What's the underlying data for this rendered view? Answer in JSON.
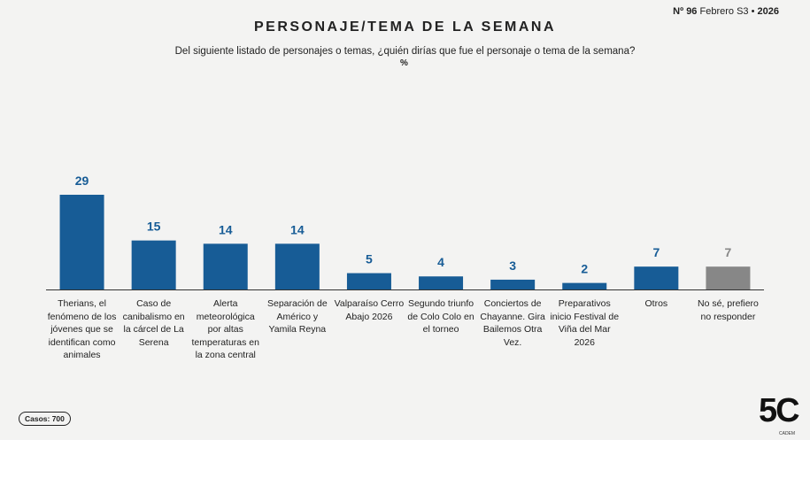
{
  "header": {
    "issue_label": "Nº",
    "issue_number": "96",
    "period": "Febrero S3",
    "separator": "•",
    "year": "2026"
  },
  "chart_data": {
    "type": "bar",
    "title": "PERSONAJE/TEMA DE LA SEMANA",
    "subtitle": "Del siguiente listado de personajes o temas, ¿quién dirías que fue el personaje o tema de la semana?",
    "unit": "%",
    "categories": [
      "Therians, el fenómeno de los jóvenes que se identifican como animales",
      "Caso de canibalismo en la cárcel de La Serena",
      "Alerta meteorológica por altas temperaturas en la zona central",
      "Separación de Américo y Yamila Reyna",
      "Valparaíso Cerro Abajo 2026",
      "Segundo triunfo de Colo Colo en el torneo",
      "Conciertos de Chayanne. Gira Bailemos Otra Vez.",
      "Preparativos inicio Festival de Viña del Mar 2026",
      "Otros",
      "No sé, prefiero no responder"
    ],
    "values": [
      29,
      15,
      14,
      14,
      5,
      4,
      3,
      2,
      7,
      7
    ],
    "colors": [
      "#175c96",
      "#175c96",
      "#175c96",
      "#175c96",
      "#175c96",
      "#175c96",
      "#175c96",
      "#175c96",
      "#175c96",
      "#878787"
    ]
  },
  "footer": {
    "cases": "Casos: 700",
    "logo": "5C",
    "brand": "CADEM"
  }
}
